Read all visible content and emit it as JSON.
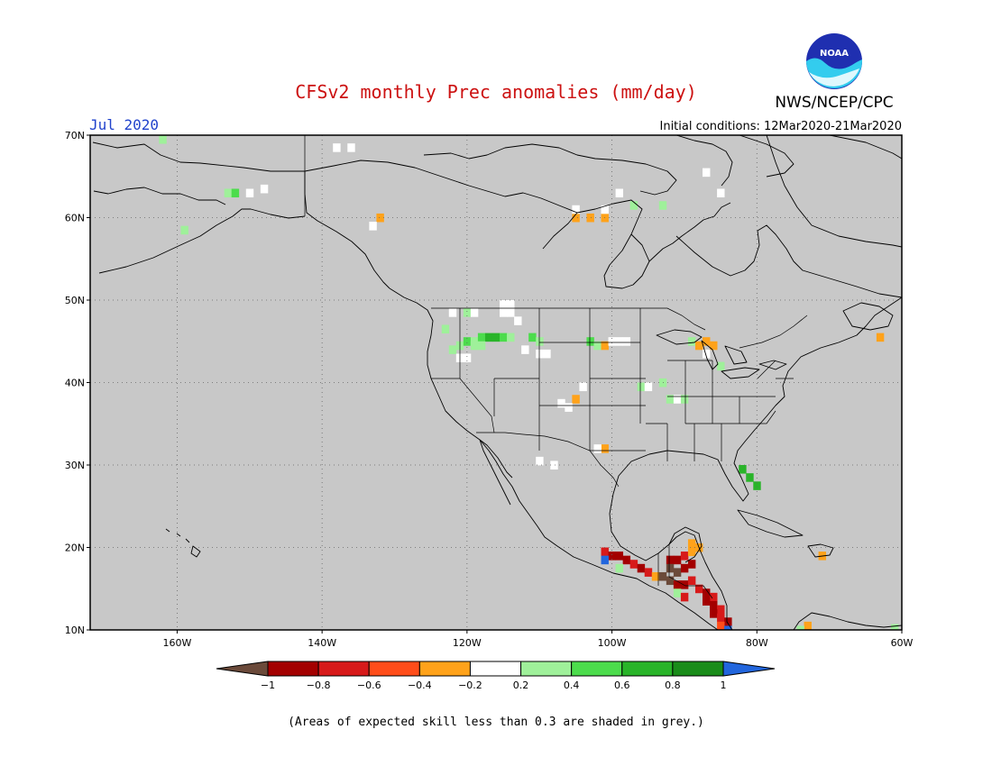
{
  "title": "CFSv2 monthly Prec anomalies (mm/day)",
  "valid_month": "Jul 2020",
  "initial_conditions": "Initial conditions: 12Mar2020-21Mar2020",
  "organization": "NWS/NCEP/CPC",
  "logo_text": "NOAA",
  "footnote": "(Areas of expected skill less than 0.3 are shaded in grey.)",
  "map": {
    "lon_range": [
      -172,
      -60
    ],
    "lat_range": [
      10,
      70
    ],
    "lon_ticks": [
      {
        "value": -160,
        "label": "160W"
      },
      {
        "value": -140,
        "label": "140W"
      },
      {
        "value": -120,
        "label": "120W"
      },
      {
        "value": -100,
        "label": "100W"
      },
      {
        "value": -80,
        "label": "80W"
      },
      {
        "value": -60,
        "label": "60W"
      }
    ],
    "lat_ticks": [
      {
        "value": 10,
        "label": "10N"
      },
      {
        "value": 20,
        "label": "20N"
      },
      {
        "value": 30,
        "label": "30N"
      },
      {
        "value": 40,
        "label": "40N"
      },
      {
        "value": 50,
        "label": "50N"
      },
      {
        "value": 60,
        "label": "60N"
      },
      {
        "value": 70,
        "label": "70N"
      }
    ],
    "grey_color": "#c8c8c8"
  },
  "legend": {
    "colors": [
      "#6b4a3a",
      "#a30000",
      "#d71a1a",
      "#ff4d1a",
      "#ffa21a",
      "#ffffff",
      "#9ff09a",
      "#4cdc4c",
      "#29b429",
      "#1a8c1a",
      "#2266dd"
    ],
    "labels": [
      "−1",
      "−0.8",
      "−0.6",
      "−0.4",
      "−0.2",
      "0.2",
      "0.4",
      "0.6",
      "0.8",
      "1"
    ]
  },
  "chart_data": {
    "type": "heatmap",
    "field": "precipitation anomaly",
    "units": "mm/day",
    "cells": [
      {
        "lon": -162,
        "lat": 69.5,
        "v": 0.3
      },
      {
        "lon": -153,
        "lat": 63,
        "v": 0.3
      },
      {
        "lon": -152,
        "lat": 63,
        "v": 0.5
      },
      {
        "lon": -150,
        "lat": 63,
        "v": 0
      },
      {
        "lon": -148,
        "lat": 63.5,
        "v": 0
      },
      {
        "lon": -159,
        "lat": 58.5,
        "v": 0.3
      },
      {
        "lon": -138,
        "lat": 68.5,
        "v": 0
      },
      {
        "lon": -136,
        "lat": 68.5,
        "v": 0
      },
      {
        "lon": -132,
        "lat": 60,
        "v": -0.3
      },
      {
        "lon": -133,
        "lat": 59,
        "v": 0
      },
      {
        "lon": -105,
        "lat": 60,
        "v": -0.3
      },
      {
        "lon": -103,
        "lat": 60,
        "v": -0.3
      },
      {
        "lon": -101,
        "lat": 60,
        "v": -0.3
      },
      {
        "lon": -105,
        "lat": 61,
        "v": 0
      },
      {
        "lon": -101,
        "lat": 61,
        "v": 0
      },
      {
        "lon": -97,
        "lat": 61.5,
        "v": 0.3
      },
      {
        "lon": -93,
        "lat": 61.5,
        "v": 0.3
      },
      {
        "lon": -99,
        "lat": 63,
        "v": 0
      },
      {
        "lon": -87,
        "lat": 65.5,
        "v": 0
      },
      {
        "lon": -85,
        "lat": 63,
        "v": 0
      },
      {
        "lon": -123,
        "lat": 46.5,
        "v": 0.3
      },
      {
        "lon": -122,
        "lat": 44,
        "v": 0.3
      },
      {
        "lon": -121,
        "lat": 44.5,
        "v": 0.3
      },
      {
        "lon": -120,
        "lat": 45,
        "v": 0.5
      },
      {
        "lon": -119,
        "lat": 45,
        "v": 0.3
      },
      {
        "lon": -118,
        "lat": 45.5,
        "v": 0.5
      },
      {
        "lon": -117,
        "lat": 45.5,
        "v": 0.7
      },
      {
        "lon": -116,
        "lat": 45.5,
        "v": 0.7
      },
      {
        "lon": -115,
        "lat": 45.5,
        "v": 0.5
      },
      {
        "lon": -114,
        "lat": 45.5,
        "v": 0.3
      },
      {
        "lon": -119,
        "lat": 44.5,
        "v": 0.3
      },
      {
        "lon": -118,
        "lat": 44.5,
        "v": 0.3
      },
      {
        "lon": -121,
        "lat": 43,
        "v": 0
      },
      {
        "lon": -120,
        "lat": 43,
        "v": 0
      },
      {
        "lon": -122,
        "lat": 48.5,
        "v": 0
      },
      {
        "lon": -120,
        "lat": 48.5,
        "v": 0.3
      },
      {
        "lon": -119,
        "lat": 48.5,
        "v": 0
      },
      {
        "lon": -115,
        "lat": 49.5,
        "v": 0
      },
      {
        "lon": -114,
        "lat": 49.5,
        "v": 0
      },
      {
        "lon": -115,
        "lat": 48.5,
        "v": 0
      },
      {
        "lon": -114,
        "lat": 48.5,
        "v": 0
      },
      {
        "lon": -113,
        "lat": 47.5,
        "v": 0
      },
      {
        "lon": -111,
        "lat": 45.5,
        "v": 0.5
      },
      {
        "lon": -110,
        "lat": 45,
        "v": 0.3
      },
      {
        "lon": -112,
        "lat": 44,
        "v": 0
      },
      {
        "lon": -110,
        "lat": 43.5,
        "v": 0
      },
      {
        "lon": -109,
        "lat": 43.5,
        "v": 0
      },
      {
        "lon": -103,
        "lat": 45,
        "v": 0.5
      },
      {
        "lon": -102,
        "lat": 44.5,
        "v": 0.3
      },
      {
        "lon": -101,
        "lat": 44.5,
        "v": -0.3
      },
      {
        "lon": -100,
        "lat": 45,
        "v": 0
      },
      {
        "lon": -99,
        "lat": 45,
        "v": 0
      },
      {
        "lon": -98,
        "lat": 45,
        "v": 0
      },
      {
        "lon": -89,
        "lat": 45,
        "v": 0.3
      },
      {
        "lon": -88,
        "lat": 44.5,
        "v": -0.3
      },
      {
        "lon": -87,
        "lat": 45,
        "v": -0.3
      },
      {
        "lon": -86,
        "lat": 44.5,
        "v": -0.3
      },
      {
        "lon": -87,
        "lat": 43.5,
        "v": 0
      },
      {
        "lon": -85,
        "lat": 42,
        "v": 0.3
      },
      {
        "lon": -96,
        "lat": 39.5,
        "v": 0.3
      },
      {
        "lon": -95,
        "lat": 39.5,
        "v": 0
      },
      {
        "lon": -93,
        "lat": 40,
        "v": 0.3
      },
      {
        "lon": -92,
        "lat": 38,
        "v": 0.3
      },
      {
        "lon": -91,
        "lat": 38,
        "v": 0
      },
      {
        "lon": -90,
        "lat": 38,
        "v": 0.3
      },
      {
        "lon": -105,
        "lat": 38,
        "v": -0.3
      },
      {
        "lon": -106,
        "lat": 37,
        "v": 0
      },
      {
        "lon": -107,
        "lat": 37.5,
        "v": 0
      },
      {
        "lon": -104,
        "lat": 39.5,
        "v": 0
      },
      {
        "lon": -101,
        "lat": 32,
        "v": -0.3
      },
      {
        "lon": -102,
        "lat": 32,
        "v": 0
      },
      {
        "lon": -110,
        "lat": 30.5,
        "v": 0
      },
      {
        "lon": -108,
        "lat": 30,
        "v": 0
      },
      {
        "lon": -82,
        "lat": 29.5,
        "v": 0.7
      },
      {
        "lon": -81,
        "lat": 28.5,
        "v": 0.7
      },
      {
        "lon": -80,
        "lat": 27.5,
        "v": 0.7
      },
      {
        "lon": -63,
        "lat": 45.5,
        "v": -0.3
      },
      {
        "lon": -101,
        "lat": 19.5,
        "v": -0.7
      },
      {
        "lon": -100,
        "lat": 19,
        "v": -0.9
      },
      {
        "lon": -99,
        "lat": 19,
        "v": -0.9
      },
      {
        "lon": -98,
        "lat": 18.5,
        "v": -0.9
      },
      {
        "lon": -97,
        "lat": 18,
        "v": -0.7
      },
      {
        "lon": -96,
        "lat": 17.5,
        "v": -0.9
      },
      {
        "lon": -95,
        "lat": 17,
        "v": -0.7
      },
      {
        "lon": -94,
        "lat": 16.5,
        "v": -0.3
      },
      {
        "lon": -101,
        "lat": 18.5,
        "v": 1.1
      },
      {
        "lon": -99,
        "lat": 17.5,
        "v": 0.3
      },
      {
        "lon": -92,
        "lat": 18.5,
        "v": -0.9
      },
      {
        "lon": -91,
        "lat": 18.5,
        "v": -0.9
      },
      {
        "lon": -90,
        "lat": 19,
        "v": -0.7
      },
      {
        "lon": -89,
        "lat": 19.5,
        "v": -0.3
      },
      {
        "lon": -88,
        "lat": 20,
        "v": -0.3
      },
      {
        "lon": -89,
        "lat": 20.5,
        "v": -0.3
      },
      {
        "lon": -92,
        "lat": 17.5,
        "v": -1.1
      },
      {
        "lon": -91,
        "lat": 17,
        "v": -1.1
      },
      {
        "lon": -90,
        "lat": 17.5,
        "v": -0.9
      },
      {
        "lon": -89,
        "lat": 18,
        "v": -0.9
      },
      {
        "lon": -93,
        "lat": 16.5,
        "v": -1.1
      },
      {
        "lon": -92,
        "lat": 16,
        "v": -1.1
      },
      {
        "lon": -91,
        "lat": 15.5,
        "v": -0.9
      },
      {
        "lon": -90,
        "lat": 15.5,
        "v": -0.9
      },
      {
        "lon": -89,
        "lat": 16,
        "v": -0.7
      },
      {
        "lon": -88,
        "lat": 15,
        "v": -0.7
      },
      {
        "lon": -87,
        "lat": 14.5,
        "v": -0.9
      },
      {
        "lon": -86,
        "lat": 14,
        "v": -0.7
      },
      {
        "lon": -87,
        "lat": 13.5,
        "v": -0.9
      },
      {
        "lon": -86,
        "lat": 13,
        "v": -0.9
      },
      {
        "lon": -85,
        "lat": 12.5,
        "v": -0.7
      },
      {
        "lon": -86,
        "lat": 12,
        "v": -0.9
      },
      {
        "lon": -85,
        "lat": 11.5,
        "v": -0.7
      },
      {
        "lon": -84,
        "lat": 11,
        "v": -0.9
      },
      {
        "lon": -85,
        "lat": 10.5,
        "v": -0.5
      },
      {
        "lon": -91,
        "lat": 14.5,
        "v": 0.3
      },
      {
        "lon": -90,
        "lat": 14,
        "v": -0.7
      },
      {
        "lon": -84,
        "lat": 10,
        "v": 1.1
      },
      {
        "lon": -73,
        "lat": 10.5,
        "v": -0.3
      },
      {
        "lon": -74,
        "lat": 10,
        "v": 0.3
      },
      {
        "lon": -71,
        "lat": 19,
        "v": -0.3
      },
      {
        "lon": -61,
        "lat": 10.2,
        "v": 0.3
      }
    ]
  }
}
